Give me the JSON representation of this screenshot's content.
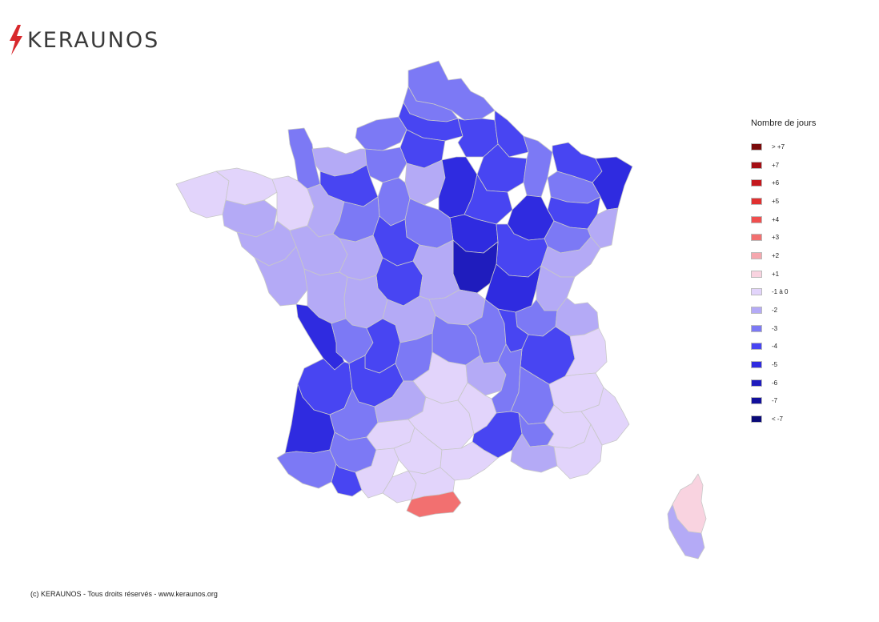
{
  "brand": {
    "name": "KERAUNOS",
    "accent": "#d8282c"
  },
  "legend": {
    "title": "Nombre de jours",
    "items": [
      {
        "label": "> +7",
        "color": "#7a0a0a"
      },
      {
        "label": "+7",
        "color": "#a50f15"
      },
      {
        "label": "+6",
        "color": "#c4181d"
      },
      {
        "label": "+5",
        "color": "#e03030"
      },
      {
        "label": "+4",
        "color": "#f04e4e"
      },
      {
        "label": "+3",
        "color": "#f27070"
      },
      {
        "label": "+2",
        "color": "#f5a7ae"
      },
      {
        "label": "+1",
        "color": "#f9d3e0"
      },
      {
        "label": "-1 à 0",
        "color": "#e2d4fb"
      },
      {
        "label": "-2",
        "color": "#b4aaf6"
      },
      {
        "label": "-3",
        "color": "#7c79f5"
      },
      {
        "label": "-4",
        "color": "#4845f2"
      },
      {
        "label": "-5",
        "color": "#2f2be0"
      },
      {
        "label": "-6",
        "color": "#1f1cbd"
      },
      {
        "label": "-7",
        "color": "#12109c"
      },
      {
        "label": "< -7",
        "color": "#0a0a78"
      }
    ]
  },
  "map": {
    "regions": [
      {
        "name": "nord",
        "class": "-3"
      },
      {
        "name": "pas-de-calais",
        "class": "-3"
      },
      {
        "name": "somme",
        "class": "-4"
      },
      {
        "name": "aisne",
        "class": "-4"
      },
      {
        "name": "ardennes",
        "class": "-4"
      },
      {
        "name": "seine-maritime",
        "class": "-3"
      },
      {
        "name": "oise",
        "class": "-4"
      },
      {
        "name": "marne",
        "class": "-4"
      },
      {
        "name": "meuse",
        "class": "-3"
      },
      {
        "name": "moselle",
        "class": "-4"
      },
      {
        "name": "bas-rhin",
        "class": "-5"
      },
      {
        "name": "manche",
        "class": "-3"
      },
      {
        "name": "calvados",
        "class": "-2"
      },
      {
        "name": "eure",
        "class": "-3"
      },
      {
        "name": "ile-de-france",
        "class": "-2"
      },
      {
        "name": "seine-et-marne",
        "class": "-5"
      },
      {
        "name": "aube",
        "class": "-4"
      },
      {
        "name": "meurthe-et-moselle",
        "class": "-3"
      },
      {
        "name": "vosges",
        "class": "-4"
      },
      {
        "name": "haut-rhin",
        "class": "-2"
      },
      {
        "name": "finistere",
        "class": "-1 à 0"
      },
      {
        "name": "cotes-d-armor",
        "class": "-1 à 0"
      },
      {
        "name": "morbihan",
        "class": "-2"
      },
      {
        "name": "ille-et-vilaine",
        "class": "-1 à 0"
      },
      {
        "name": "orne",
        "class": "-4"
      },
      {
        "name": "eure-et-loir",
        "class": "-3"
      },
      {
        "name": "yonne",
        "class": "-5"
      },
      {
        "name": "haute-marne",
        "class": "-5"
      },
      {
        "name": "haute-saone",
        "class": "-3"
      },
      {
        "name": "mayenne",
        "class": "-2"
      },
      {
        "name": "sarthe",
        "class": "-3"
      },
      {
        "name": "loiret",
        "class": "-3"
      },
      {
        "name": "cote-d-or",
        "class": "-4"
      },
      {
        "name": "doubs",
        "class": "-2"
      },
      {
        "name": "loire-atlantique",
        "class": "-2"
      },
      {
        "name": "maine-et-loire",
        "class": "-2"
      },
      {
        "name": "loir-et-cher",
        "class": "-4"
      },
      {
        "name": "nievre",
        "class": "-6"
      },
      {
        "name": "saone-et-loire",
        "class": "-5"
      },
      {
        "name": "jura",
        "class": "-2"
      },
      {
        "name": "vendee",
        "class": "-2"
      },
      {
        "name": "indre-et-loire",
        "class": "-2"
      },
      {
        "name": "indre",
        "class": "-4"
      },
      {
        "name": "cher",
        "class": "-2"
      },
      {
        "name": "allier",
        "class": "-2"
      },
      {
        "name": "ain",
        "class": "-3"
      },
      {
        "name": "haute-savoie",
        "class": "-2"
      },
      {
        "name": "deux-sevres",
        "class": "-2"
      },
      {
        "name": "vienne",
        "class": "-2"
      },
      {
        "name": "charente-maritime",
        "class": "-5"
      },
      {
        "name": "charente",
        "class": "-3"
      },
      {
        "name": "haute-vienne",
        "class": "-4"
      },
      {
        "name": "creuse",
        "class": "-2"
      },
      {
        "name": "puy-de-dome",
        "class": "-3"
      },
      {
        "name": "loire",
        "class": "-3"
      },
      {
        "name": "rhone",
        "class": "-4"
      },
      {
        "name": "isere",
        "class": "-4"
      },
      {
        "name": "savoie",
        "class": "-1 à 0"
      },
      {
        "name": "gironde",
        "class": "-4"
      },
      {
        "name": "dordogne",
        "class": "-4"
      },
      {
        "name": "correze",
        "class": "-3"
      },
      {
        "name": "cantal",
        "class": "-1 à 0"
      },
      {
        "name": "haute-loire",
        "class": "-2"
      },
      {
        "name": "ardeche",
        "class": "-3"
      },
      {
        "name": "drome",
        "class": "-3"
      },
      {
        "name": "hautes-alpes",
        "class": "-1 à 0"
      },
      {
        "name": "landes",
        "class": "-5"
      },
      {
        "name": "lot-et-garonne",
        "class": "-3"
      },
      {
        "name": "lot",
        "class": "-2"
      },
      {
        "name": "aveyron",
        "class": "-1 à 0"
      },
      {
        "name": "lozere",
        "class": "-1 à 0"
      },
      {
        "name": "gard",
        "class": "-4"
      },
      {
        "name": "vaucluse",
        "class": "-3"
      },
      {
        "name": "alpes-de-haute-provence",
        "class": "-1 à 0"
      },
      {
        "name": "alpes-maritimes",
        "class": "-1 à 0"
      },
      {
        "name": "pyrenees-atlantiques",
        "class": "-3"
      },
      {
        "name": "gers",
        "class": "-3"
      },
      {
        "name": "tarn-et-garonne",
        "class": "-1 à 0"
      },
      {
        "name": "tarn",
        "class": "-1 à 0"
      },
      {
        "name": "herault",
        "class": "-1 à 0"
      },
      {
        "name": "bouches-du-rhone",
        "class": "-2"
      },
      {
        "name": "var",
        "class": "-1 à 0"
      },
      {
        "name": "hautes-pyrenees",
        "class": "-4"
      },
      {
        "name": "haute-garonne",
        "class": "-1 à 0"
      },
      {
        "name": "ariege",
        "class": "-1 à 0"
      },
      {
        "name": "aude",
        "class": "-1 à 0"
      },
      {
        "name": "pyrenees-orientales",
        "class": "+3"
      },
      {
        "name": "haute-corse",
        "class": "+1"
      },
      {
        "name": "corse-du-sud",
        "class": "-2"
      }
    ]
  },
  "footer": {
    "copyright": "(c) KERAUNOS - Tous droits réservés - www.keraunos.org"
  }
}
